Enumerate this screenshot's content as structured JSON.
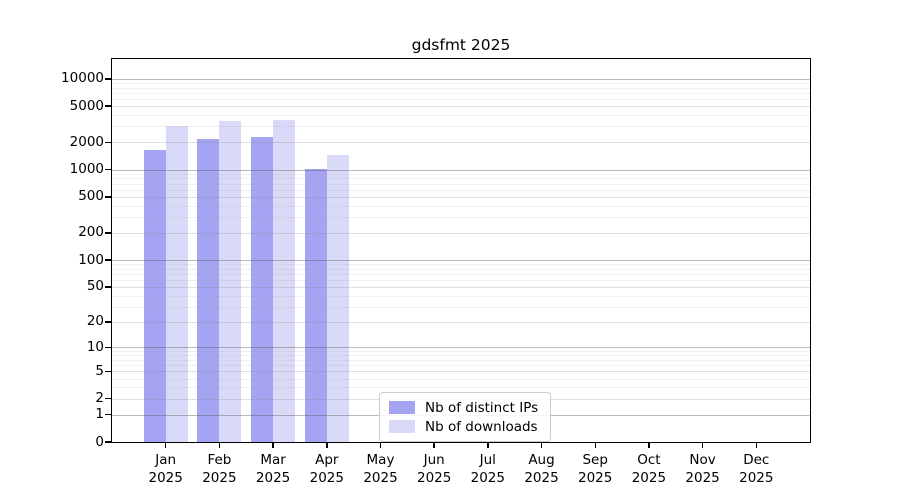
{
  "chart_data": {
    "type": "bar",
    "title": "gdsfmt 2025",
    "categories": [
      "Jan",
      "Feb",
      "Mar",
      "Apr",
      "May",
      "Jun",
      "Jul",
      "Aug",
      "Sep",
      "Oct",
      "Nov",
      "Dec"
    ],
    "x_year_label": "2025",
    "series": [
      {
        "name": "Nb of distinct IPs",
        "color": "#a4a4f2",
        "values": [
          1650,
          2170,
          2290,
          1020,
          null,
          null,
          null,
          null,
          null,
          null,
          null,
          null
        ]
      },
      {
        "name": "Nb of downloads",
        "color": "#d9d9f8",
        "values": [
          3000,
          3460,
          3550,
          1430,
          null,
          null,
          null,
          null,
          null,
          null,
          null,
          null
        ]
      }
    ],
    "yscale": "log1p",
    "ylim": [
      0,
      16500
    ],
    "yticks": [
      0,
      1,
      2,
      5,
      10,
      20,
      50,
      100,
      200,
      500,
      1000,
      2000,
      5000,
      10000
    ],
    "grid": {
      "show": true,
      "decade_lines": [
        1,
        10,
        100,
        1000,
        10000
      ],
      "mid_lines": [
        2,
        5,
        20,
        50,
        200,
        500,
        2000,
        5000
      ],
      "minor_multipliers": [
        3,
        4,
        6,
        7,
        8,
        9
      ]
    },
    "legend": {
      "position": "lower-center",
      "entries": [
        "Nb of distinct IPs",
        "Nb of downloads"
      ]
    },
    "colors": {
      "axis": "#000000",
      "grid_decade": "rgba(90,90,90,0.42)",
      "grid_mid": "rgba(130,130,130,0.25)",
      "grid_minor": "rgba(160,160,160,0.16)",
      "background": "#ffffff"
    }
  }
}
